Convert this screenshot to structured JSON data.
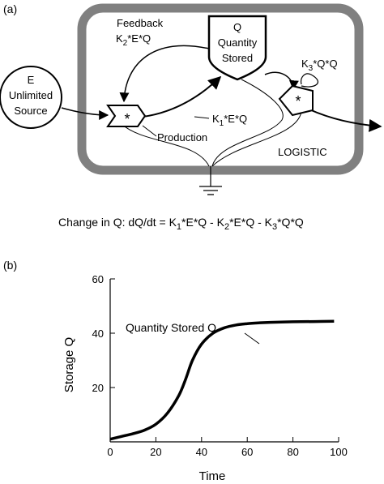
{
  "panel_a": {
    "label": "(a)",
    "source": {
      "line1": "E",
      "line2": "Unlimited",
      "line3": "Source"
    },
    "storage": {
      "line1": "Q",
      "line2": "Quantity",
      "line3": "Stored"
    },
    "feedback": {
      "line1": "Feedback",
      "k": "K",
      "k_sub": "2",
      "rest": "*E*Q"
    },
    "k1_flow": {
      "k": "K",
      "k_sub": "1",
      "rest": "*E*Q"
    },
    "k3_flow": {
      "k": "K",
      "k_sub": "3",
      "rest": "*Q*Q"
    },
    "multiplier_symbol": "*",
    "production_label": "Production",
    "box_label": "LOGISTIC"
  },
  "equation": {
    "prefix": "Change in Q:  dQ/dt = K",
    "s1": "1",
    "p2": "*E*Q - K",
    "s2": "2",
    "p3": "*E*Q - K",
    "s3": "3",
    "p4": "*Q*Q"
  },
  "panel_b": {
    "label": "(b)",
    "curve_label": "Quantity Stored Q"
  },
  "chart_data": {
    "type": "line",
    "title": "",
    "xlabel": "Time",
    "ylabel": "Storage Q",
    "xlim": [
      0,
      100
    ],
    "ylim": [
      0,
      60
    ],
    "xticks": [
      0,
      20,
      40,
      60,
      80,
      100
    ],
    "yticks": [
      20,
      40,
      60
    ],
    "grid": false,
    "series": [
      {
        "name": "Quantity Stored Q",
        "x": [
          0,
          5,
          10,
          15,
          20,
          25,
          30,
          33,
          36,
          40,
          45,
          50,
          55,
          60,
          65,
          70,
          80,
          90,
          98
        ],
        "y": [
          1,
          2,
          3,
          4.3,
          6.5,
          10.5,
          17,
          23,
          30,
          36,
          40,
          42,
          43,
          43.5,
          43.8,
          44,
          44.2,
          44.3,
          44.4
        ]
      }
    ]
  }
}
